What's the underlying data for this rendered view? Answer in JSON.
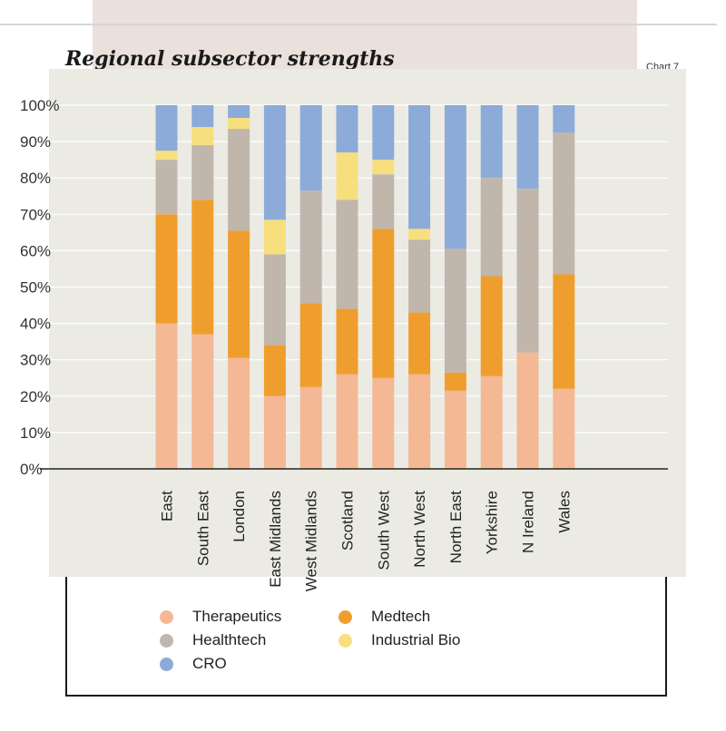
{
  "header": {
    "title": "Regional subsector strengths",
    "chart_label": "Chart 7"
  },
  "chart_data": {
    "type": "bar",
    "stacked": true,
    "title": "Regional subsector strengths",
    "categories": [
      "East",
      "South East",
      "London",
      "East Midlands",
      "West Midlands",
      "Scotland",
      "South West",
      "North West",
      "North East",
      "Yorkshire",
      "N Ireland",
      "Wales"
    ],
    "series": [
      {
        "name": "Therapeutics",
        "color": "#f4b895",
        "values": [
          40,
          37,
          30.5,
          20,
          22.5,
          26,
          25,
          26,
          21.5,
          25.5,
          32,
          22
        ]
      },
      {
        "name": "Medtech",
        "color": "#ef9e2e",
        "values": [
          30,
          37,
          35,
          14,
          23,
          18,
          41,
          17,
          5,
          27.5,
          0,
          31.5
        ]
      },
      {
        "name": "Healthtech",
        "color": "#c0b6ab",
        "values": [
          15,
          15,
          28,
          25,
          31,
          30,
          15,
          20,
          34,
          27,
          45,
          39
        ]
      },
      {
        "name": "Industrial Bio",
        "color": "#f8df7e",
        "values": [
          2.5,
          5,
          3,
          9.5,
          0,
          13,
          4,
          3,
          0,
          0,
          0,
          0
        ]
      },
      {
        "name": "CRO",
        "color": "#8dabd8",
        "values": [
          12.5,
          6,
          3.5,
          31.5,
          23.5,
          13,
          15,
          34,
          39.5,
          20,
          23,
          7.5
        ]
      }
    ],
    "y_ticks": [
      "0%",
      "10%",
      "20%",
      "30%",
      "40%",
      "50%",
      "60%",
      "70%",
      "80%",
      "90%",
      "100%"
    ],
    "ylim": [
      0,
      100
    ],
    "legend_position": "bottom"
  }
}
